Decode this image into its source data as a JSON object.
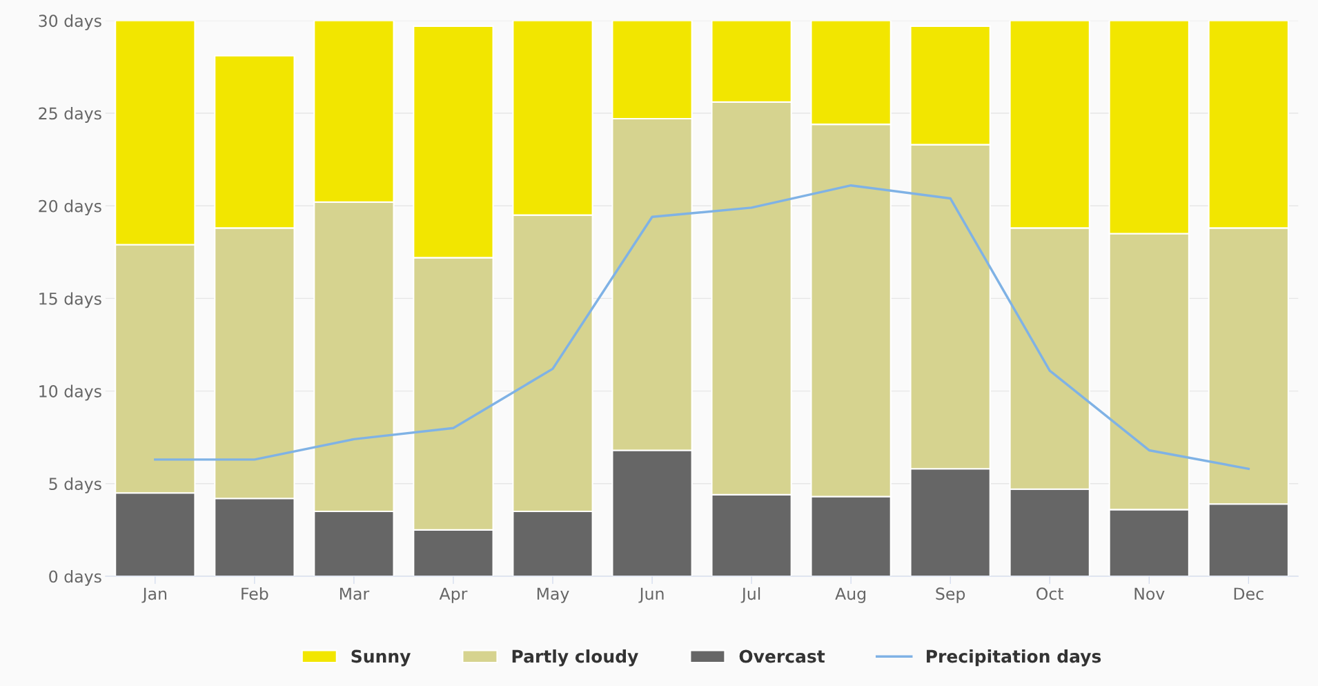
{
  "chart_data": {
    "type": "bar",
    "stacked": true,
    "categories": [
      "Jan",
      "Feb",
      "Mar",
      "Apr",
      "May",
      "Jun",
      "Jul",
      "Aug",
      "Sep",
      "Oct",
      "Nov",
      "Dec"
    ],
    "series": [
      {
        "name": "Overcast",
        "color": "#666666",
        "values": [
          4.5,
          4.2,
          3.5,
          2.5,
          3.5,
          6.8,
          4.4,
          4.3,
          5.8,
          4.7,
          3.6,
          3.9
        ]
      },
      {
        "name": "Partly cloudy",
        "color": "#d6d38f",
        "values": [
          13.4,
          14.6,
          16.7,
          14.7,
          16.0,
          17.9,
          21.2,
          20.1,
          17.5,
          14.1,
          14.9,
          14.9
        ]
      },
      {
        "name": "Sunny",
        "color": "#f2e600",
        "values": [
          12.1,
          9.3,
          9.8,
          12.5,
          10.5,
          5.3,
          4.4,
          5.6,
          6.4,
          11.2,
          11.5,
          11.2
        ]
      },
      {
        "name": "Precipitation days",
        "type": "line",
        "color": "#7fb2e5",
        "values": [
          6.3,
          6.3,
          7.4,
          8.0,
          11.2,
          19.4,
          19.9,
          21.1,
          20.4,
          11.1,
          6.8,
          5.8
        ]
      }
    ],
    "ylim": [
      0,
      30
    ],
    "yticks": [
      {
        "value": 0,
        "label": "0 days"
      },
      {
        "value": 5,
        "label": "5 days"
      },
      {
        "value": 10,
        "label": "10 days"
      },
      {
        "value": 15,
        "label": "15 days"
      },
      {
        "value": 20,
        "label": "20 days"
      },
      {
        "value": 25,
        "label": "25 days"
      },
      {
        "value": 30,
        "label": "30 days"
      }
    ],
    "grid": "y",
    "legend": "bottom",
    "marker": "none",
    "line_style": "solid"
  }
}
